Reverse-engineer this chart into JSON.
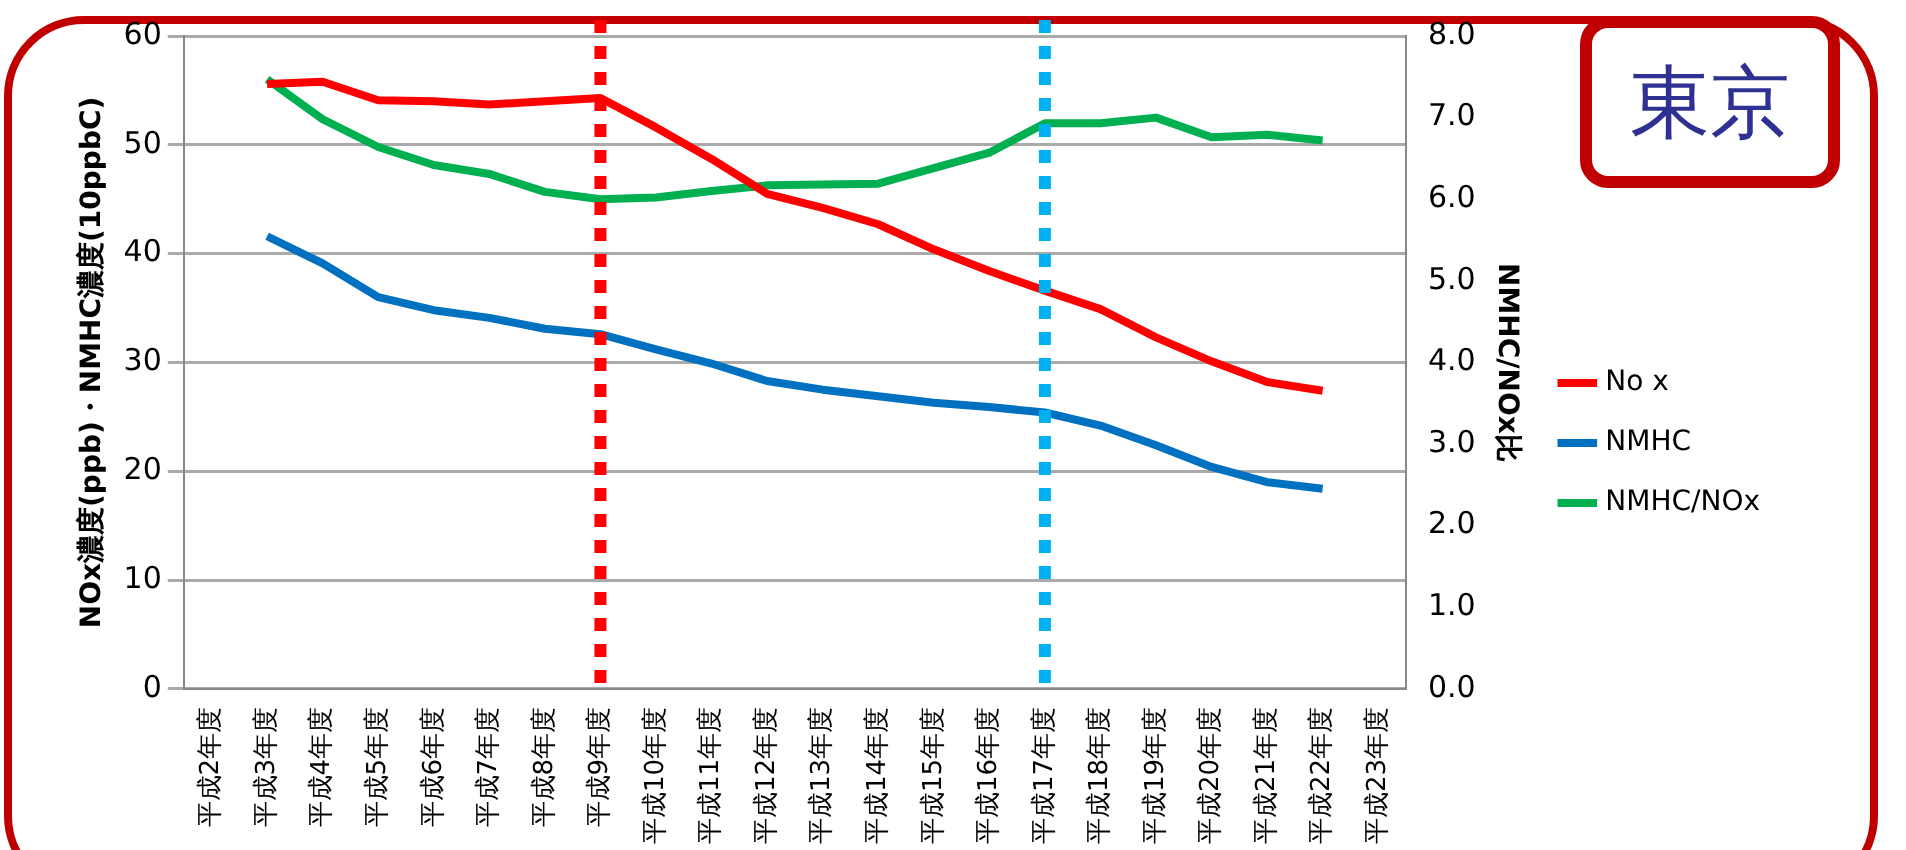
{
  "chart_data": {
    "type": "line",
    "title": "東京",
    "ylabel": "NOx濃度(ppb)・NMHC濃度(10ppbC)",
    "y2label": "NMHC/NOx比",
    "categories": [
      "平成2年度",
      "平成3年度",
      "平成4年度",
      "平成5年度",
      "平成6年度",
      "平成7年度",
      "平成8年度",
      "平成9年度",
      "平成10年度",
      "平成11年度",
      "平成12年度",
      "平成13年度",
      "平成14年度",
      "平成15年度",
      "平成16年度",
      "平成17年度",
      "平成18年度",
      "平成19年度",
      "平成20年度",
      "平成21年度",
      "平成22年度",
      "平成23年度"
    ],
    "series": [
      {
        "name": "No x",
        "color": "#ff0000",
        "values": [
          null,
          55.6,
          55.8,
          54.1,
          54.0,
          53.7,
          54.0,
          54.3,
          51.6,
          48.7,
          45.5,
          44.2,
          42.7,
          40.4,
          38.4,
          36.6,
          34.9,
          32.3,
          30.1,
          28.2,
          27.4,
          null
        ]
      },
      {
        "name": "NMHC",
        "color": "#0070c0",
        "values": [
          null,
          41.6,
          39.1,
          36.0,
          34.8,
          34.1,
          33.1,
          32.6,
          31.2,
          29.9,
          28.3,
          27.5,
          26.9,
          26.3,
          25.9,
          25.4,
          24.2,
          22.4,
          20.4,
          19.0,
          18.4,
          null
        ]
      },
      {
        "name": "NMHC/NOx",
        "color": "#00b050",
        "axis": "y2",
        "values": [
          null,
          7.47,
          6.98,
          6.64,
          6.42,
          6.31,
          6.09,
          6.0,
          6.02,
          6.1,
          6.17,
          6.18,
          6.19,
          6.38,
          6.57,
          6.93,
          6.93,
          7.0,
          6.76,
          6.79,
          6.72,
          null
        ]
      }
    ],
    "ylim": [
      0,
      60
    ],
    "yticks": [
      0,
      10,
      20,
      30,
      40,
      50,
      60
    ],
    "y2lim": [
      0,
      8
    ],
    "y2ticks": [
      {
        "value": 0,
        "label": "0.0"
      },
      {
        "value": 1,
        "label": "1.0"
      },
      {
        "value": 2,
        "label": "2.0"
      },
      {
        "value": 3,
        "label": "3.0"
      },
      {
        "value": 4,
        "label": "4.0"
      },
      {
        "value": 5,
        "label": "5.0"
      },
      {
        "value": 6,
        "label": "6.0"
      },
      {
        "value": 7,
        "label": "7.0"
      },
      {
        "value": 8,
        "label": "8.0"
      }
    ],
    "ref_lines": [
      {
        "axis": "x",
        "value": "平成9年度",
        "color": "#ff0000",
        "line_style": "dotted"
      },
      {
        "axis": "x",
        "value": "平成17年度",
        "color": "#00b0f0",
        "line_style": "dotted"
      }
    ],
    "grid": "y",
    "legend": "right",
    "marker": "none",
    "line_style": "solid"
  }
}
